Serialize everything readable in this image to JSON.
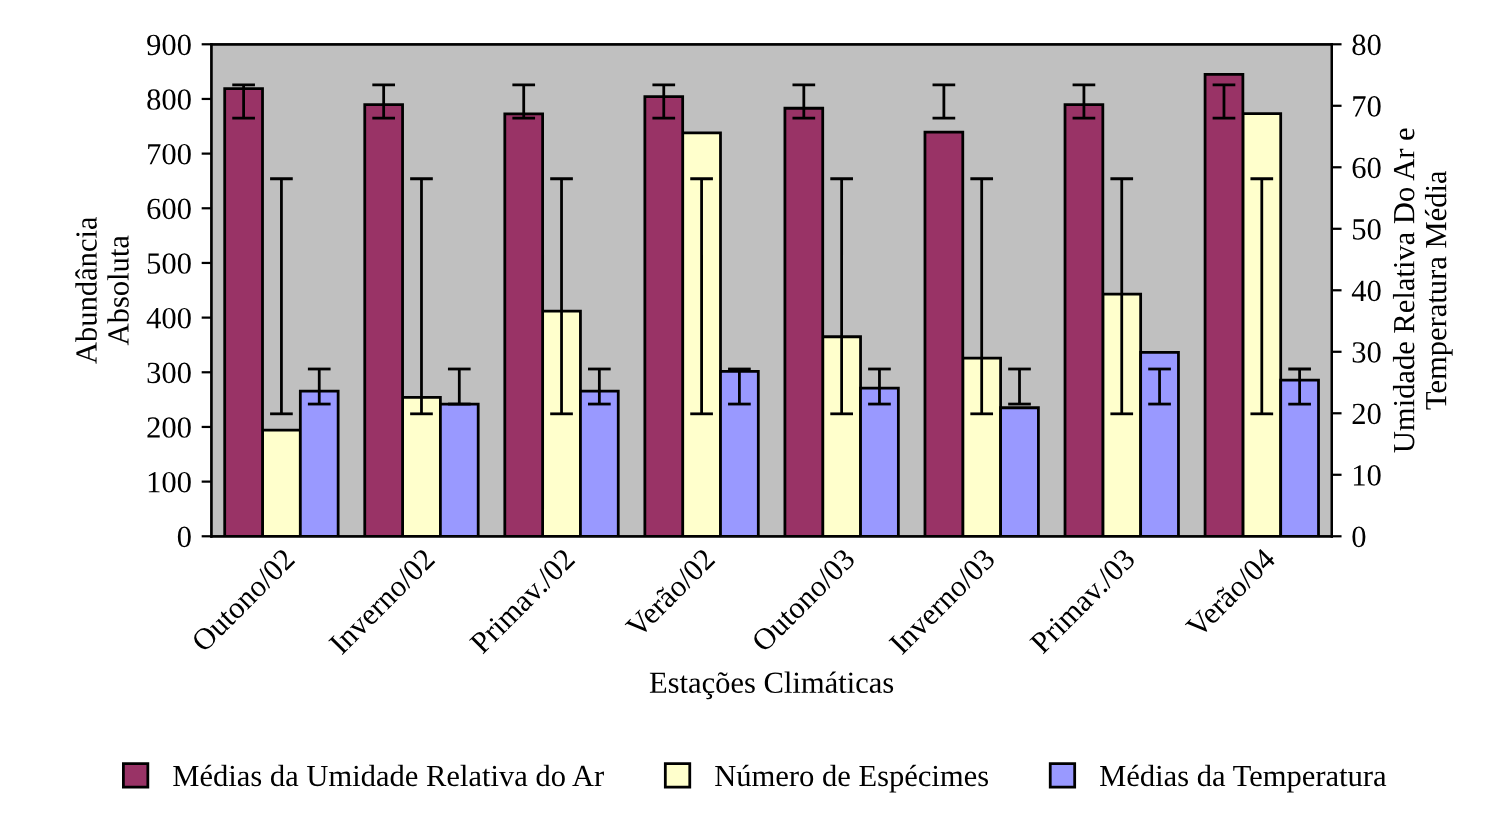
{
  "chart_data": {
    "type": "bar",
    "xlabel": "Estações Climáticas",
    "ylabel": "Abundância\nAbsoluta",
    "y2label": "Umidade Relativa Do Ar e\nTemperatura Média",
    "categories": [
      "Outono/02",
      "Inverno/02",
      "Primav./02",
      "Verão/02",
      "Outono/03",
      "Inverno/03",
      "Primav./03",
      "Verão/04"
    ],
    "series": [
      {
        "name": "Médias da Umidade Relativa do Ar",
        "color": "#993366",
        "axis": "y2",
        "values": [
          72.8,
          70.2,
          68.7,
          71.5,
          69.6,
          65.7,
          70.2,
          75.1
        ],
        "errors": [
          [
            68,
            73.4
          ],
          [
            68,
            73.4
          ],
          [
            68,
            73.4
          ],
          [
            68,
            73.4
          ],
          [
            68,
            73.4
          ],
          [
            68,
            73.4
          ],
          [
            68,
            73.4
          ],
          [
            68,
            73.4
          ]
        ]
      },
      {
        "name": "Número de Espécimes",
        "color": "#ffffcc",
        "values": [
          194,
          254,
          412,
          738,
          365,
          326,
          443,
          773
        ],
        "errors": [
          [
            224,
            654
          ],
          [
            224,
            654
          ],
          [
            224,
            654
          ],
          [
            224,
            654
          ],
          [
            224,
            654
          ],
          [
            224,
            654
          ],
          [
            224,
            654
          ],
          [
            224,
            654
          ]
        ]
      },
      {
        "name": "Médias da Temperatura",
        "color": "#9999ff",
        "axis": "y2",
        "values": [
          23.6,
          21.5,
          23.6,
          26.8,
          24.1,
          20.9,
          29.9,
          25.4
        ],
        "errors": [
          [
            21.5,
            27.2
          ],
          [
            21.5,
            27.2
          ],
          [
            21.5,
            27.2
          ],
          [
            21.5,
            27.2
          ],
          [
            21.5,
            27.2
          ],
          [
            21.5,
            27.2
          ],
          [
            21.5,
            27.2
          ],
          [
            21.5,
            27.2
          ]
        ]
      }
    ],
    "ylim": [
      0,
      900
    ],
    "yticks": [
      0,
      100,
      200,
      300,
      400,
      500,
      600,
      700,
      800,
      900
    ],
    "y2lim": [
      0,
      80
    ],
    "y2ticks": [
      0,
      10,
      20,
      30,
      40,
      50,
      60,
      70,
      80
    ],
    "grid": false,
    "legend": "bottom"
  }
}
